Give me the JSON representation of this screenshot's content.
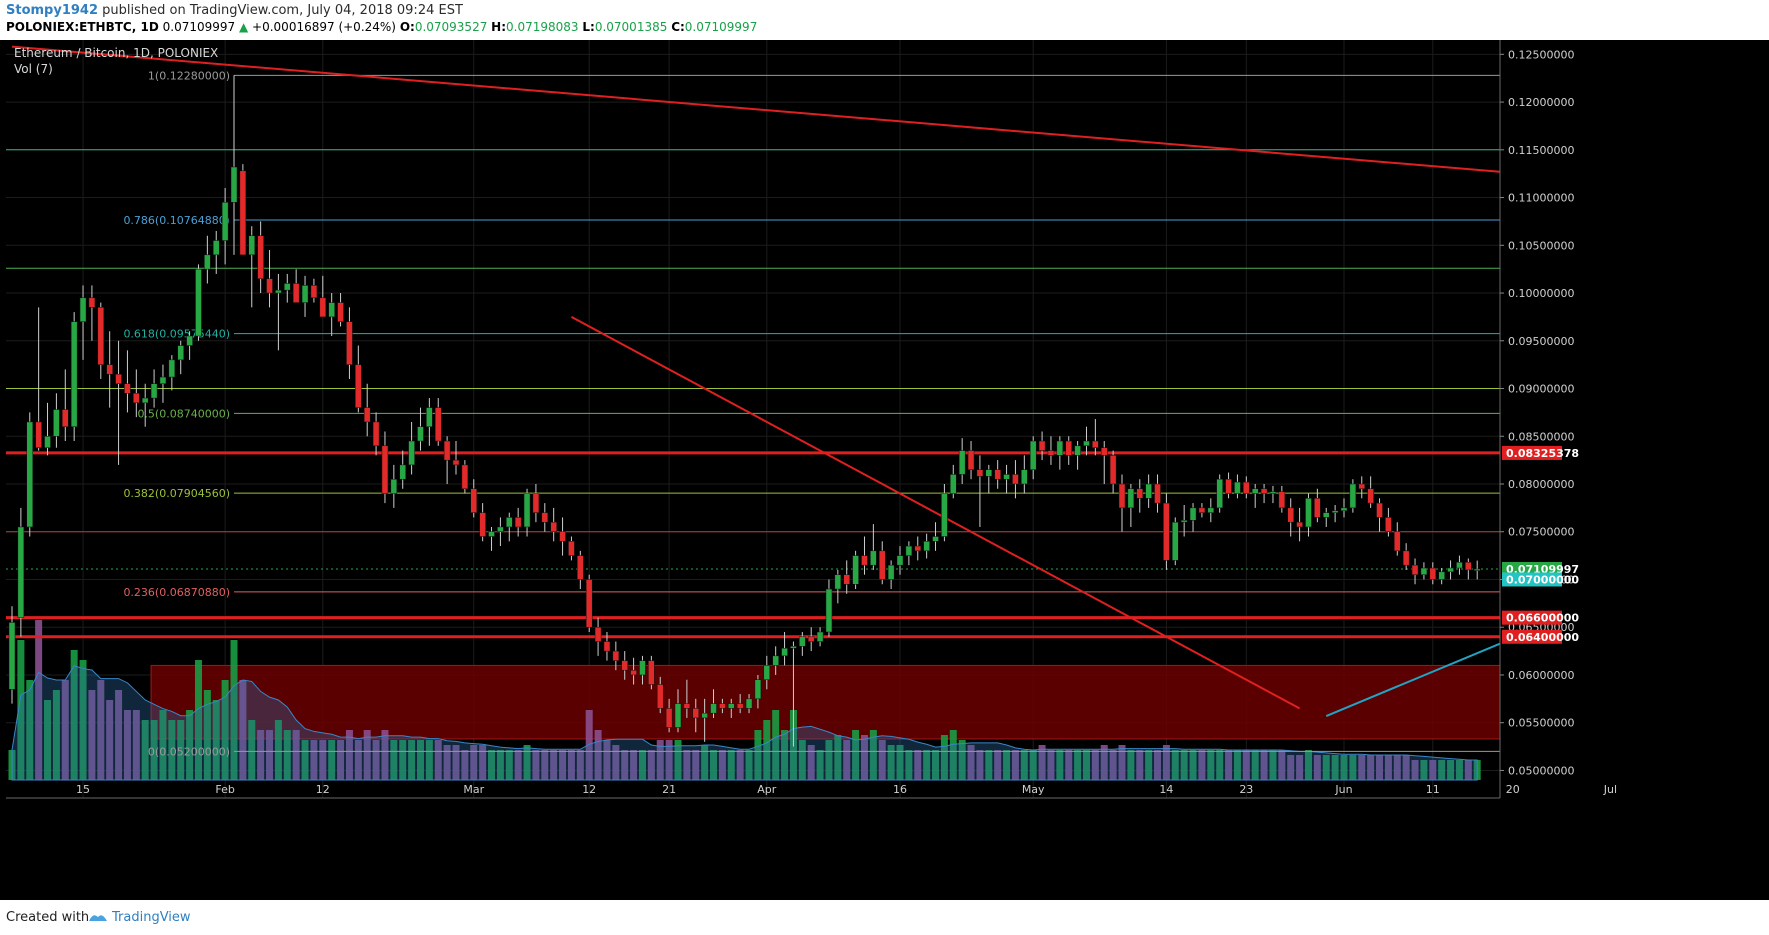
{
  "header": {
    "user": "Stompy1942",
    "published": "published on TradingView.com, July 04, 2018 09:24 EST",
    "symbol": "POLONIEX:ETHBTC, 1D",
    "last": "0.07109997",
    "change": "+0.00016897 (+0.24%)",
    "o_label": "O:",
    "o": "0.07093527",
    "h_label": "H:",
    "h": "0.07198083",
    "l_label": "L:",
    "l": "0.07001385",
    "c_label": "C:",
    "c": "0.07109997"
  },
  "legend": {
    "title": "Ethereum / Bitcoin, 1D, POLONIEX",
    "volume": "Vol (7)"
  },
  "footer": {
    "created_with": "Created with",
    "brand": "TradingView"
  },
  "colors": {
    "background": "#000000",
    "up": "#27a845",
    "down": "#e32a2a",
    "trend_red": "#e02020",
    "trend_blue": "#22a3c4",
    "volume_up": "#1a9c45",
    "volume_down": "#8b4f8f",
    "zone": "#6a0000"
  },
  "chart_data": {
    "type": "candlestick",
    "title": "Ethereum / Bitcoin, 1D, POLONIEX",
    "xlabel": "",
    "ylabel": "",
    "ylim": [
      0.049,
      0.1265
    ],
    "x_ticks": [
      "15",
      "Feb",
      "12",
      "Mar",
      "12",
      "21",
      "Apr",
      "16",
      "May",
      "14",
      "23",
      "Jun",
      "11",
      "20",
      "Jul"
    ],
    "y_ticks": [
      "0.12500000",
      "0.12000000",
      "0.11500000",
      "0.11000000",
      "0.10500000",
      "0.10000000",
      "0.09500000",
      "0.09000000",
      "0.08500000",
      "0.08000000",
      "0.07500000",
      "0.07000000",
      "0.06500000",
      "0.06000000",
      "0.05500000",
      "0.05000000"
    ],
    "price_labels": [
      {
        "text": "0.08325378",
        "value": 0.08325378,
        "color": "#e02020"
      },
      {
        "text": "0.07109997",
        "value": 0.07109997,
        "color": "#27a845"
      },
      {
        "text": "0.07000000",
        "value": 0.07,
        "color": "#22c4c4"
      },
      {
        "text": "0.06600000",
        "value": 0.066,
        "color": "#e02020"
      },
      {
        "text": "0.06400000",
        "value": 0.064,
        "color": "#e02020"
      }
    ],
    "fib_levels": [
      {
        "label": "1(0.12280000)",
        "value": 0.1228,
        "color": "#9a9a9a"
      },
      {
        "label": "0.786(0.10764880)",
        "value": 0.1076488,
        "color": "#4aa0d6"
      },
      {
        "label": "0.618(0.09575440)",
        "value": 0.0957544,
        "color": "#22b0a0"
      },
      {
        "label": "0.5(0.08740000)",
        "value": 0.0874,
        "color": "#6ab04c"
      },
      {
        "label": "0.382(0.07904560)",
        "value": 0.0790456,
        "color": "#9cc23a"
      },
      {
        "label": "0.236(0.06870880)",
        "value": 0.0687088,
        "color": "#e06060"
      },
      {
        "label": "0(0.05200000)",
        "value": 0.052,
        "color": "#9a9a9a"
      }
    ],
    "horizontal_lines": [
      {
        "value": 0.115,
        "color": "#2ab890"
      },
      {
        "value": 0.1026,
        "color": "#4caf50"
      },
      {
        "value": 0.09,
        "color": "#9cc23a"
      },
      {
        "value": 0.075,
        "color": "#b04040"
      },
      {
        "value": 0.07109997,
        "color": "#27a845",
        "dotted": true
      }
    ],
    "thick_red_lines": [
      0.08325378,
      0.066,
      0.064
    ],
    "cyan_support": {
      "x_start": 278,
      "x_end": 289,
      "value": 0.07
    },
    "trendlines": [
      {
        "color": "#e02020",
        "x1": 0,
        "y1": 0.1258,
        "x2": 289,
        "y2": 0.1032
      },
      {
        "color": "#e02020",
        "x1": 63,
        "y1": 0.0975,
        "x2": 145,
        "y2": 0.0565
      },
      {
        "color": "#22a3c4",
        "x1": 148,
        "y1": 0.0557,
        "x2": 219,
        "y2": 0.0832
      }
    ],
    "zone": {
      "x_start": 16,
      "x_end": 181,
      "top": 0.061,
      "bottom": 0.0533
    },
    "ohlc_columns": [
      "open",
      "high",
      "low",
      "close"
    ],
    "candles": [
      [
        0.0585,
        0.0672,
        0.057,
        0.0655
      ],
      [
        0.066,
        0.0775,
        0.064,
        0.0755
      ],
      [
        0.0755,
        0.0875,
        0.0745,
        0.0865
      ],
      [
        0.0865,
        0.0985,
        0.0835,
        0.0838
      ],
      [
        0.0838,
        0.0885,
        0.083,
        0.085
      ],
      [
        0.085,
        0.0895,
        0.0838,
        0.0878
      ],
      [
        0.0878,
        0.092,
        0.0845,
        0.086
      ],
      [
        0.086,
        0.098,
        0.0845,
        0.097
      ],
      [
        0.097,
        0.1008,
        0.093,
        0.0995
      ],
      [
        0.0995,
        0.1008,
        0.095,
        0.0985
      ],
      [
        0.0985,
        0.099,
        0.091,
        0.0925
      ],
      [
        0.0925,
        0.096,
        0.088,
        0.0915
      ],
      [
        0.0915,
        0.095,
        0.082,
        0.0905
      ],
      [
        0.0905,
        0.094,
        0.0875,
        0.0895
      ],
      [
        0.0895,
        0.092,
        0.087,
        0.0885
      ],
      [
        0.0885,
        0.0905,
        0.086,
        0.089
      ],
      [
        0.089,
        0.092,
        0.088,
        0.0905
      ],
      [
        0.0905,
        0.0925,
        0.0885,
        0.0912
      ],
      [
        0.0912,
        0.0935,
        0.0898,
        0.093
      ],
      [
        0.093,
        0.095,
        0.0915,
        0.0945
      ],
      [
        0.0945,
        0.096,
        0.093,
        0.0955
      ],
      [
        0.0955,
        0.103,
        0.095,
        0.1025
      ],
      [
        0.1025,
        0.106,
        0.101,
        0.104
      ],
      [
        0.104,
        0.1065,
        0.102,
        0.1055
      ],
      [
        0.1055,
        0.111,
        0.103,
        0.1095
      ],
      [
        0.1095,
        0.1228,
        0.104,
        0.1132
      ],
      [
        0.1128,
        0.1135,
        0.104,
        0.104
      ],
      [
        0.104,
        0.107,
        0.0985,
        0.106
      ],
      [
        0.106,
        0.1075,
        0.1,
        0.1015
      ],
      [
        0.1015,
        0.1045,
        0.0985,
        0.1
      ],
      [
        0.1,
        0.102,
        0.094,
        0.1003
      ],
      [
        0.1003,
        0.102,
        0.099,
        0.101
      ],
      [
        0.101,
        0.1025,
        0.0995,
        0.099
      ],
      [
        0.099,
        0.1018,
        0.0975,
        0.1008
      ],
      [
        0.1008,
        0.1015,
        0.099,
        0.0995
      ],
      [
        0.0995,
        0.1018,
        0.098,
        0.0975
      ],
      [
        0.0975,
        0.1,
        0.0955,
        0.099
      ],
      [
        0.099,
        0.1,
        0.0965,
        0.097
      ],
      [
        0.097,
        0.0985,
        0.091,
        0.0925
      ],
      [
        0.0925,
        0.0945,
        0.0875,
        0.088
      ],
      [
        0.088,
        0.0905,
        0.085,
        0.0865
      ],
      [
        0.0865,
        0.0875,
        0.083,
        0.084
      ],
      [
        0.084,
        0.0855,
        0.078,
        0.079
      ],
      [
        0.079,
        0.082,
        0.0775,
        0.0805
      ],
      [
        0.0805,
        0.0835,
        0.0795,
        0.082
      ],
      [
        0.082,
        0.0865,
        0.081,
        0.0845
      ],
      [
        0.0845,
        0.088,
        0.0835,
        0.086
      ],
      [
        0.086,
        0.089,
        0.084,
        0.088
      ],
      [
        0.088,
        0.089,
        0.084,
        0.0845
      ],
      [
        0.0845,
        0.085,
        0.08,
        0.0825
      ],
      [
        0.0825,
        0.0845,
        0.081,
        0.082
      ],
      [
        0.082,
        0.0825,
        0.079,
        0.0795
      ],
      [
        0.0795,
        0.0805,
        0.0765,
        0.077
      ],
      [
        0.077,
        0.078,
        0.074,
        0.0745
      ],
      [
        0.0745,
        0.0755,
        0.073,
        0.075
      ],
      [
        0.075,
        0.0765,
        0.0735,
        0.0755
      ],
      [
        0.0755,
        0.077,
        0.074,
        0.0765
      ],
      [
        0.0765,
        0.0775,
        0.0745,
        0.0755
      ],
      [
        0.0755,
        0.0795,
        0.0745,
        0.079
      ],
      [
        0.079,
        0.08,
        0.076,
        0.077
      ],
      [
        0.077,
        0.078,
        0.075,
        0.076
      ],
      [
        0.076,
        0.0775,
        0.074,
        0.075
      ],
      [
        0.075,
        0.0765,
        0.0725,
        0.074
      ],
      [
        0.074,
        0.0745,
        0.072,
        0.0725
      ],
      [
        0.0725,
        0.073,
        0.069,
        0.07
      ],
      [
        0.07,
        0.0705,
        0.0645,
        0.065
      ],
      [
        0.065,
        0.066,
        0.062,
        0.0635
      ],
      [
        0.0635,
        0.0645,
        0.0615,
        0.0625
      ],
      [
        0.0625,
        0.0635,
        0.0605,
        0.0615
      ],
      [
        0.0615,
        0.0625,
        0.0595,
        0.0605
      ],
      [
        0.0605,
        0.0618,
        0.059,
        0.06
      ],
      [
        0.06,
        0.062,
        0.059,
        0.0615
      ],
      [
        0.0615,
        0.062,
        0.0585,
        0.059
      ],
      [
        0.059,
        0.0598,
        0.056,
        0.0565
      ],
      [
        0.0565,
        0.0575,
        0.054,
        0.0545
      ],
      [
        0.0545,
        0.0585,
        0.054,
        0.057
      ],
      [
        0.057,
        0.0595,
        0.0555,
        0.0565
      ],
      [
        0.0565,
        0.0575,
        0.054,
        0.0555
      ],
      [
        0.0555,
        0.0575,
        0.053,
        0.056
      ],
      [
        0.056,
        0.0585,
        0.0555,
        0.057
      ],
      [
        0.057,
        0.0575,
        0.056,
        0.0565
      ],
      [
        0.0565,
        0.0575,
        0.0555,
        0.057
      ],
      [
        0.057,
        0.058,
        0.056,
        0.0565
      ],
      [
        0.0565,
        0.058,
        0.056,
        0.0575
      ],
      [
        0.0575,
        0.06,
        0.0565,
        0.0595
      ],
      [
        0.0595,
        0.062,
        0.0585,
        0.061
      ],
      [
        0.061,
        0.063,
        0.06,
        0.062
      ],
      [
        0.062,
        0.0645,
        0.061,
        0.0628
      ],
      [
        0.0628,
        0.0635,
        0.0525,
        0.063
      ],
      [
        0.063,
        0.0645,
        0.062,
        0.064
      ],
      [
        0.064,
        0.065,
        0.0625,
        0.0635
      ],
      [
        0.0635,
        0.065,
        0.063,
        0.0645
      ],
      [
        0.0645,
        0.07,
        0.064,
        0.069
      ],
      [
        0.069,
        0.071,
        0.0675,
        0.0705
      ],
      [
        0.0705,
        0.072,
        0.0685,
        0.0695
      ],
      [
        0.0695,
        0.073,
        0.069,
        0.0725
      ],
      [
        0.0725,
        0.0745,
        0.0705,
        0.0715
      ],
      [
        0.0715,
        0.0758,
        0.071,
        0.073
      ],
      [
        0.073,
        0.074,
        0.0695,
        0.07
      ],
      [
        0.07,
        0.072,
        0.069,
        0.0715
      ],
      [
        0.0715,
        0.0735,
        0.0705,
        0.0725
      ],
      [
        0.0725,
        0.074,
        0.0715,
        0.0735
      ],
      [
        0.0735,
        0.0745,
        0.072,
        0.073
      ],
      [
        0.073,
        0.0748,
        0.0722,
        0.074
      ],
      [
        0.074,
        0.076,
        0.073,
        0.0745
      ],
      [
        0.0745,
        0.08,
        0.074,
        0.079
      ],
      [
        0.079,
        0.082,
        0.0785,
        0.081
      ],
      [
        0.081,
        0.0848,
        0.08,
        0.0835
      ],
      [
        0.0835,
        0.0845,
        0.0805,
        0.0815
      ],
      [
        0.0815,
        0.083,
        0.0755,
        0.0808
      ],
      [
        0.0808,
        0.082,
        0.079,
        0.0815
      ],
      [
        0.0815,
        0.0825,
        0.0795,
        0.0805
      ],
      [
        0.0805,
        0.082,
        0.079,
        0.081
      ],
      [
        0.081,
        0.0825,
        0.0785,
        0.08
      ],
      [
        0.08,
        0.083,
        0.079,
        0.0815
      ],
      [
        0.0815,
        0.085,
        0.0805,
        0.0845
      ],
      [
        0.0845,
        0.0855,
        0.0825,
        0.0835
      ],
      [
        0.0835,
        0.085,
        0.082,
        0.083
      ],
      [
        0.083,
        0.085,
        0.0815,
        0.0845
      ],
      [
        0.0845,
        0.085,
        0.082,
        0.083
      ],
      [
        0.083,
        0.0845,
        0.0815,
        0.084
      ],
      [
        0.084,
        0.086,
        0.083,
        0.0845
      ],
      [
        0.0845,
        0.0868,
        0.083,
        0.0838
      ],
      [
        0.0838,
        0.0845,
        0.08,
        0.083
      ],
      [
        0.083,
        0.0835,
        0.079,
        0.08
      ],
      [
        0.08,
        0.081,
        0.075,
        0.0775
      ],
      [
        0.0775,
        0.08,
        0.0755,
        0.0795
      ],
      [
        0.0795,
        0.0805,
        0.077,
        0.0785
      ],
      [
        0.0785,
        0.081,
        0.0775,
        0.08
      ],
      [
        0.08,
        0.081,
        0.077,
        0.078
      ],
      [
        0.078,
        0.079,
        0.071,
        0.072
      ],
      [
        0.072,
        0.0765,
        0.0715,
        0.076
      ],
      [
        0.076,
        0.0778,
        0.0745,
        0.0762
      ],
      [
        0.0762,
        0.078,
        0.075,
        0.0775
      ],
      [
        0.0775,
        0.078,
        0.0765,
        0.077
      ],
      [
        0.077,
        0.0785,
        0.076,
        0.0775
      ],
      [
        0.0775,
        0.081,
        0.077,
        0.0805
      ],
      [
        0.0805,
        0.0812,
        0.0785,
        0.079
      ],
      [
        0.079,
        0.081,
        0.0785,
        0.0802
      ],
      [
        0.0802,
        0.0808,
        0.0785,
        0.079
      ],
      [
        0.079,
        0.08,
        0.0775,
        0.0795
      ],
      [
        0.0795,
        0.08,
        0.078,
        0.079
      ],
      [
        0.079,
        0.0798,
        0.078,
        0.0792
      ],
      [
        0.0792,
        0.0798,
        0.077,
        0.0775
      ],
      [
        0.0775,
        0.0785,
        0.0745,
        0.076
      ],
      [
        0.076,
        0.0775,
        0.074,
        0.0755
      ],
      [
        0.0755,
        0.079,
        0.0745,
        0.0785
      ],
      [
        0.0785,
        0.0795,
        0.076,
        0.0765
      ],
      [
        0.0765,
        0.0775,
        0.0755,
        0.077
      ],
      [
        0.077,
        0.0778,
        0.076,
        0.0772
      ],
      [
        0.0772,
        0.0785,
        0.0765,
        0.0775
      ],
      [
        0.0775,
        0.0805,
        0.077,
        0.08
      ],
      [
        0.08,
        0.0808,
        0.0785,
        0.0795
      ],
      [
        0.0795,
        0.0808,
        0.0775,
        0.078
      ],
      [
        0.078,
        0.0785,
        0.075,
        0.0765
      ],
      [
        0.0765,
        0.0775,
        0.0745,
        0.075
      ],
      [
        0.075,
        0.076,
        0.0725,
        0.073
      ],
      [
        0.073,
        0.0738,
        0.071,
        0.0715
      ],
      [
        0.0715,
        0.0722,
        0.0695,
        0.0705
      ],
      [
        0.0705,
        0.0718,
        0.07,
        0.0712
      ],
      [
        0.0712,
        0.0718,
        0.0695,
        0.07
      ],
      [
        0.07,
        0.0712,
        0.0695,
        0.0708
      ],
      [
        0.0708,
        0.072,
        0.07,
        0.0712
      ],
      [
        0.0712,
        0.0725,
        0.0705,
        0.0718
      ],
      [
        0.0718,
        0.0722,
        0.07,
        0.071
      ],
      [
        0.07093527,
        0.07198083,
        0.07001385,
        0.07109997
      ]
    ],
    "volume_relative": [
      0.3,
      1.4,
      1.0,
      1.6,
      0.8,
      0.9,
      1.0,
      1.3,
      1.2,
      0.9,
      1.0,
      0.8,
      0.9,
      0.7,
      0.7,
      0.6,
      0.6,
      0.7,
      0.6,
      0.6,
      0.7,
      1.2,
      0.9,
      0.8,
      1.0,
      1.4,
      1.0,
      0.6,
      0.5,
      0.5,
      0.6,
      0.5,
      0.5,
      0.4,
      0.4,
      0.4,
      0.4,
      0.4,
      0.5,
      0.4,
      0.5,
      0.4,
      0.5,
      0.4,
      0.4,
      0.4,
      0.4,
      0.4,
      0.4,
      0.35,
      0.35,
      0.3,
      0.35,
      0.35,
      0.3,
      0.3,
      0.3,
      0.3,
      0.35,
      0.3,
      0.3,
      0.3,
      0.3,
      0.3,
      0.3,
      0.7,
      0.5,
      0.4,
      0.35,
      0.3,
      0.3,
      0.3,
      0.3,
      0.4,
      0.4,
      0.4,
      0.3,
      0.3,
      0.35,
      0.3,
      0.3,
      0.3,
      0.3,
      0.3,
      0.5,
      0.6,
      0.7,
      0.5,
      0.7,
      0.4,
      0.35,
      0.3,
      0.4,
      0.45,
      0.4,
      0.5,
      0.45,
      0.5,
      0.4,
      0.35,
      0.35,
      0.3,
      0.3,
      0.3,
      0.3,
      0.45,
      0.5,
      0.4,
      0.35,
      0.3,
      0.3,
      0.3,
      0.3,
      0.3,
      0.3,
      0.3,
      0.35,
      0.3,
      0.3,
      0.3,
      0.3,
      0.3,
      0.3,
      0.35,
      0.3,
      0.35,
      0.3,
      0.3,
      0.3,
      0.3,
      0.35,
      0.3,
      0.3,
      0.3,
      0.3,
      0.3,
      0.3,
      0.3,
      0.3,
      0.3,
      0.3,
      0.3,
      0.3,
      0.3,
      0.25,
      0.25,
      0.3,
      0.25,
      0.25,
      0.25,
      0.25,
      0.25,
      0.25,
      0.25,
      0.25,
      0.25,
      0.25,
      0.25,
      0.2,
      0.2,
      0.2,
      0.2,
      0.2,
      0.2,
      0.2,
      0.2
    ]
  }
}
